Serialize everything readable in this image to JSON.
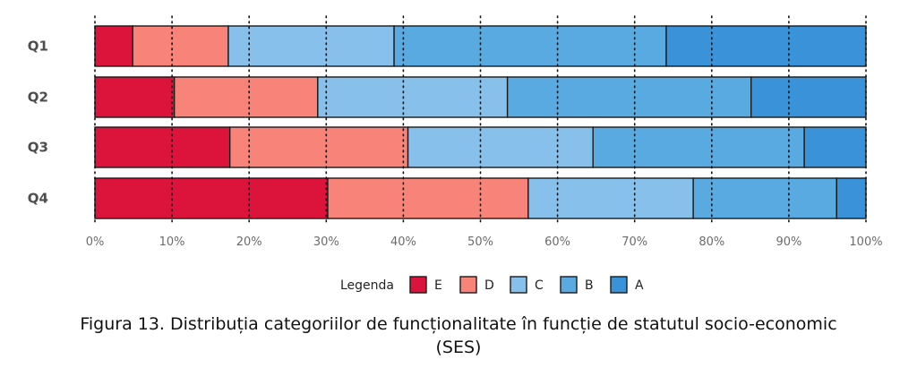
{
  "chart_data": {
    "type": "bar",
    "orientation": "horizontal",
    "stacked": true,
    "percent": true,
    "categories": [
      "Q1",
      "Q2",
      "Q3",
      "Q4"
    ],
    "series": [
      {
        "name": "E",
        "color": "#dc143c",
        "values": [
          4.9,
          10.3,
          17.5,
          30.2
        ]
      },
      {
        "name": "D",
        "color": "#f88379",
        "values": [
          12.4,
          18.6,
          23.1,
          26.0
        ]
      },
      {
        "name": "C",
        "color": "#87c0ea",
        "values": [
          21.5,
          24.6,
          24.0,
          21.4
        ]
      },
      {
        "name": "B",
        "color": "#5aaae2",
        "values": [
          35.3,
          31.6,
          27.4,
          18.6
        ]
      },
      {
        "name": "A",
        "color": "#3a93d8",
        "values": [
          25.9,
          14.9,
          8.0,
          3.8
        ]
      }
    ],
    "xlim": [
      0,
      100
    ],
    "x_ticks": [
      "0%",
      "10%",
      "20%",
      "30%",
      "40%",
      "50%",
      "60%",
      "70%",
      "80%",
      "90%",
      "100%"
    ],
    "grid": "vertical dotted",
    "legend": {
      "title": "Legenda",
      "position": "bottom",
      "items": [
        "E",
        "D",
        "C",
        "B",
        "A"
      ]
    }
  },
  "caption": {
    "line1": "Figura 13. Distribuția categoriilor de funcționalitate în funcție de statutul socio-economic",
    "line2": "(SES)"
  }
}
